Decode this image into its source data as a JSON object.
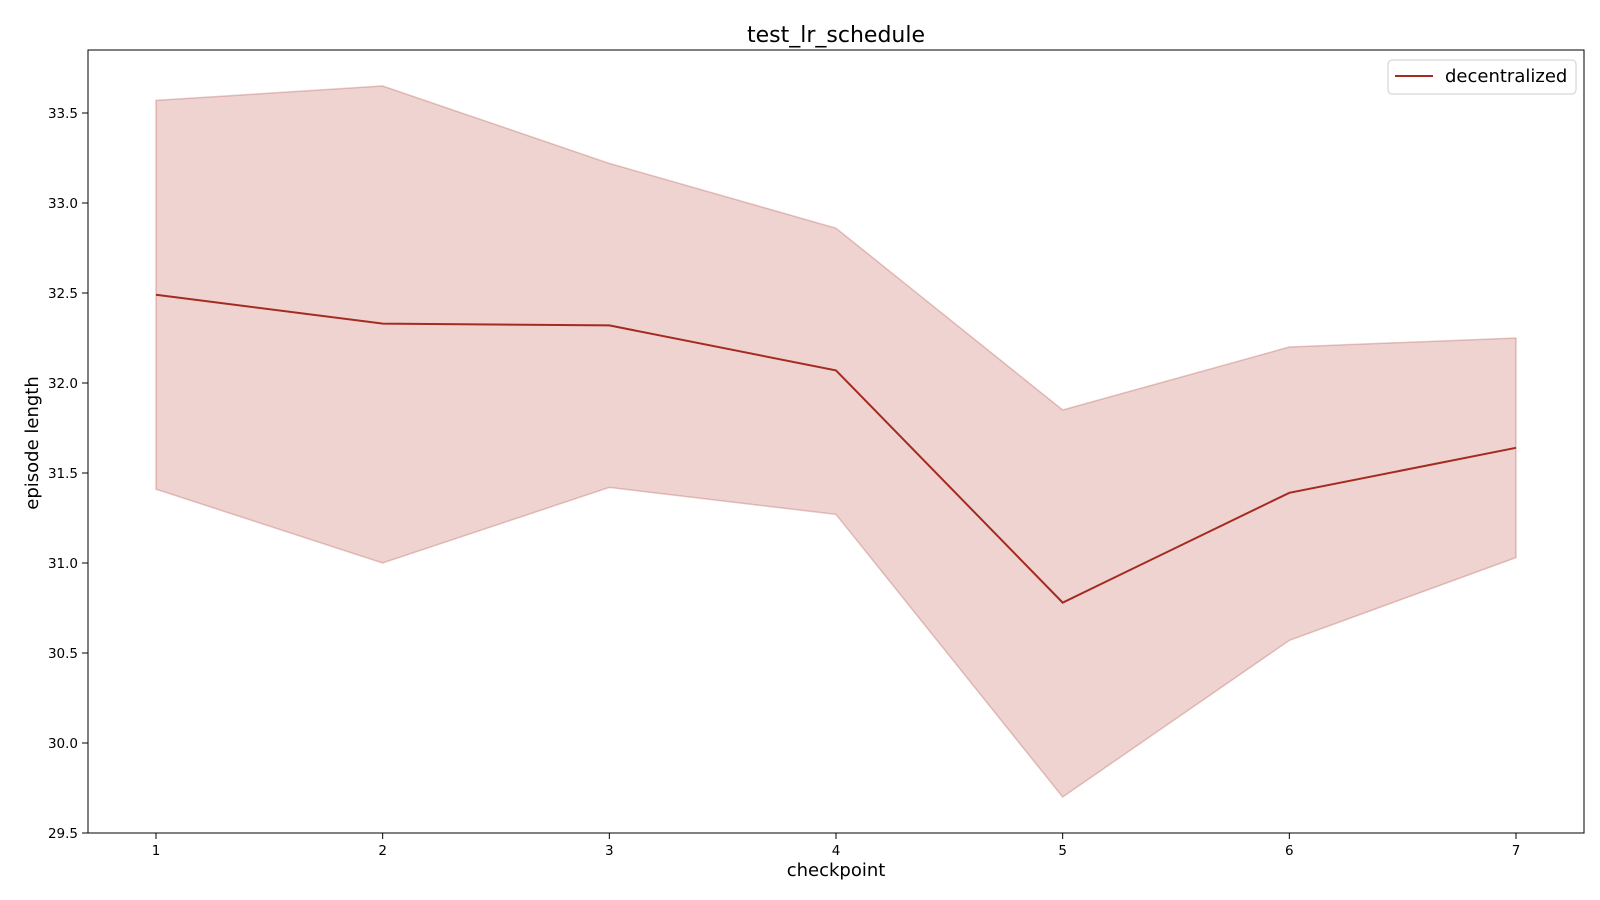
{
  "chart_data": {
    "type": "line",
    "title": "test_lr_schedule",
    "xlabel": "checkpoint",
    "ylabel": "episode length",
    "x": [
      1,
      2,
      3,
      4,
      5,
      6,
      7
    ],
    "xlim": [
      0.7,
      7.3
    ],
    "ylim": [
      29.5,
      33.85
    ],
    "xticks": [
      1,
      2,
      3,
      4,
      5,
      6,
      7
    ],
    "xtick_labels": [
      "1",
      "2",
      "3",
      "4",
      "5",
      "6",
      "7"
    ],
    "yticks": [
      29.5,
      30.0,
      30.5,
      31.0,
      31.5,
      32.0,
      32.5,
      33.0,
      33.5
    ],
    "ytick_labels": [
      "29.5",
      "30.0",
      "30.5",
      "31.0",
      "31.5",
      "32.0",
      "32.5",
      "33.0",
      "33.5"
    ],
    "grid": false,
    "legend_position": "top-right",
    "series": [
      {
        "name": "decentralized",
        "color": "#a52a1f",
        "band_color": "#e8c4c2",
        "values": [
          32.49,
          32.33,
          32.32,
          32.07,
          30.78,
          31.39,
          31.64
        ],
        "upper": [
          33.57,
          33.65,
          33.22,
          32.86,
          31.85,
          32.2,
          32.25
        ],
        "lower": [
          31.41,
          31.0,
          31.42,
          31.27,
          29.7,
          30.57,
          31.03
        ]
      }
    ]
  }
}
